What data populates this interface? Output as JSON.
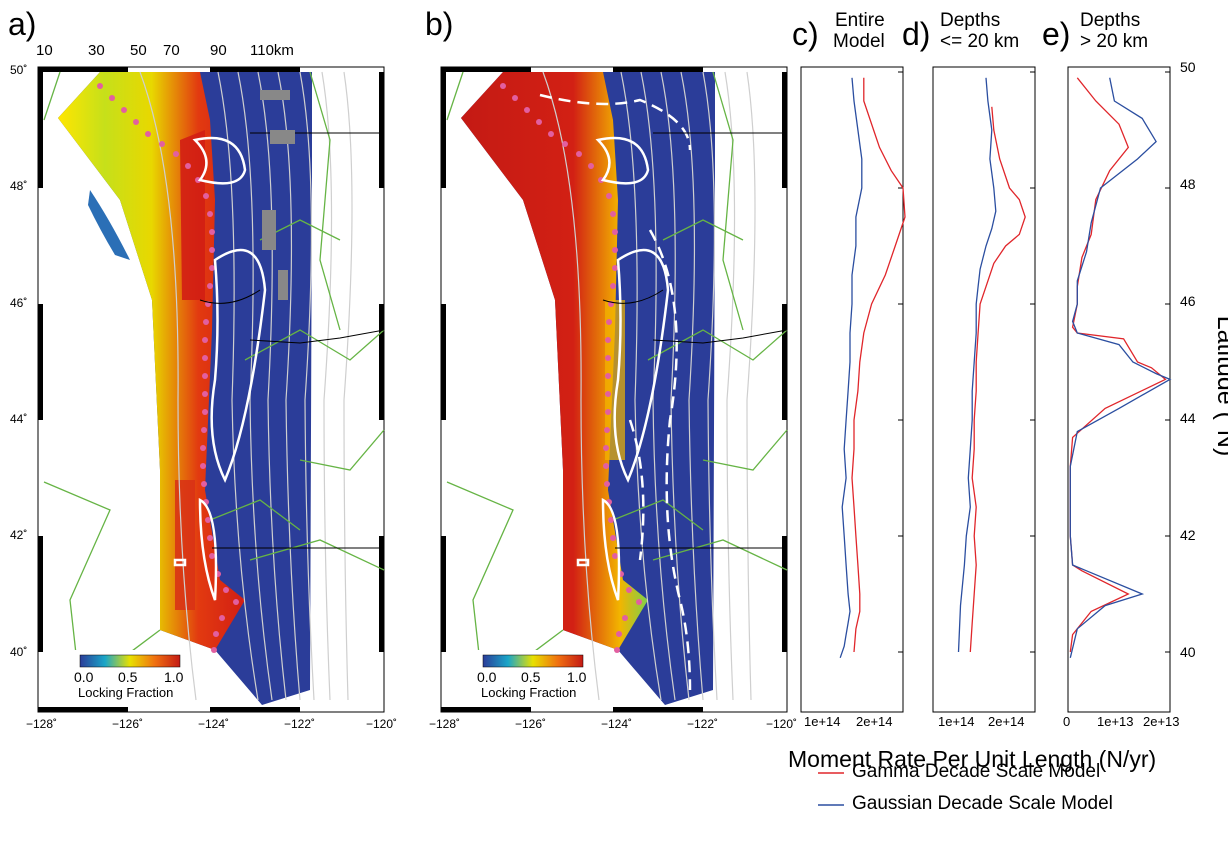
{
  "panels": {
    "a": "a)",
    "b": "b)",
    "c": {
      "letter": "c)",
      "title1": "Entire",
      "title2": "Model"
    },
    "d": {
      "letter": "d)",
      "title1": "Depths",
      "title2": "<= 20 km"
    },
    "e": {
      "letter": "e)",
      "title1": "Depths",
      "title2": "> 20 km"
    }
  },
  "maps": {
    "depth_labels": [
      "10",
      "30",
      "50",
      "70",
      "90",
      "110km"
    ],
    "lat_ticks": [
      "50˚",
      "48˚",
      "46˚",
      "44˚",
      "42˚",
      "40˚"
    ],
    "lon_ticks": [
      "−128˚",
      "−126˚",
      "−124˚",
      "−122˚",
      "−120˚"
    ],
    "colorbar": {
      "ticks": [
        "0.0",
        "0.5",
        "1.0"
      ],
      "label": "Locking Fraction"
    }
  },
  "colors": {
    "gamma": "#e0262b",
    "gaussian": "#2b4ea0",
    "plate_lines": "#66b445",
    "locked_low": "#2b3d99"
  },
  "chart_data": [
    {
      "type": "line",
      "title": "Entire Model",
      "xlabel": "Moment Rate Per Unit Length (N/yr)",
      "ylabel": "Latitude (°N)",
      "xticks": [
        "1e+14",
        "2e+14"
      ],
      "xlim": [
        0,
        260000000000000.0
      ],
      "ylim": [
        39,
        50
      ],
      "series": [
        {
          "name": "Gamma Decade Scale Model",
          "x": [
            160000000000000.0,
            160000000000000.0,
            185000000000000.0,
            200000000000000.0,
            230000000000000.0,
            260000000000000.0,
            265000000000000.0,
            240000000000000.0,
            215000000000000.0,
            180000000000000.0,
            160000000000000.0,
            150000000000000.0,
            145000000000000.0,
            135000000000000.0,
            135000000000000.0,
            130000000000000.0,
            135000000000000.0,
            140000000000000.0,
            145000000000000.0,
            150000000000000.0,
            150000000000000.0,
            140000000000000.0,
            135000000000000.0
          ],
          "y": [
            49.9,
            49.5,
            49.0,
            48.7,
            48.3,
            48.0,
            47.5,
            47.0,
            46.5,
            46.0,
            45.5,
            45.0,
            44.5,
            44.0,
            43.5,
            43.0,
            42.5,
            42.0,
            41.5,
            41.0,
            40.7,
            40.4,
            40.0
          ]
        },
        {
          "name": "Gaussian Decade Scale Model",
          "x": [
            130000000000000.0,
            135000000000000.0,
            145000000000000.0,
            155000000000000.0,
            155000000000000.0,
            140000000000000.0,
            140000000000000.0,
            130000000000000.0,
            130000000000000.0,
            125000000000000.0,
            125000000000000.0,
            120000000000000.0,
            115000000000000.0,
            110000000000000.0,
            115000000000000.0,
            105000000000000.0,
            110000000000000.0,
            115000000000000.0,
            120000000000000.0,
            125000000000000.0,
            120000000000000.0,
            115000000000000.0,
            110000000000000.0,
            100000000000000.0
          ],
          "y": [
            49.9,
            49.5,
            49.0,
            48.5,
            48.0,
            47.5,
            47.0,
            46.5,
            46.0,
            45.5,
            45.0,
            44.5,
            44.0,
            43.5,
            43.0,
            42.5,
            42.0,
            41.5,
            41.0,
            40.7,
            40.5,
            40.3,
            40.1,
            39.9
          ]
        }
      ]
    },
    {
      "type": "line",
      "title": "Depths <= 20 km",
      "xticks": [
        "1e+14",
        "2e+14"
      ],
      "xlim": [
        0,
        260000000000000.0
      ],
      "ylim": [
        39,
        50
      ],
      "series": [
        {
          "name": "Gamma Decade Scale Model",
          "x": [
            150000000000000.0,
            155000000000000.0,
            170000000000000.0,
            195000000000000.0,
            220000000000000.0,
            235000000000000.0,
            220000000000000.0,
            185000000000000.0,
            155000000000000.0,
            135000000000000.0,
            120000000000000.0,
            115000000000000.0,
            110000000000000.0,
            110000000000000.0,
            105000000000000.0,
            105000000000000.0,
            100000000000000.0,
            110000000000000.0,
            105000000000000.0,
            110000000000000.0,
            105000000000000.0,
            100000000000000.0,
            95000000000000.0
          ],
          "y": [
            49.4,
            49.0,
            48.5,
            48.0,
            47.8,
            47.5,
            47.2,
            47.0,
            46.7,
            46.3,
            46.0,
            45.5,
            45.0,
            44.5,
            44.0,
            43.5,
            43.0,
            42.5,
            42.0,
            41.5,
            41.0,
            40.5,
            40.0
          ]
        },
        {
          "name": "Gaussian Decade Scale Model",
          "x": [
            135000000000000.0,
            140000000000000.0,
            150000000000000.0,
            145000000000000.0,
            155000000000000.0,
            160000000000000.0,
            150000000000000.0,
            135000000000000.0,
            120000000000000.0,
            115000000000000.0,
            110000000000000.0,
            110000000000000.0,
            105000000000000.0,
            100000000000000.0,
            100000000000000.0,
            95000000000000.0,
            90000000000000.0,
            95000000000000.0,
            85000000000000.0,
            80000000000000.0,
            70000000000000.0,
            65000000000000.0
          ],
          "y": [
            49.9,
            49.5,
            49.0,
            48.5,
            48.0,
            47.6,
            47.3,
            47.0,
            46.6,
            46.3,
            46.0,
            45.5,
            45.0,
            44.5,
            44.0,
            43.5,
            43.0,
            42.5,
            42.0,
            41.5,
            40.8,
            40.0
          ]
        }
      ]
    },
    {
      "type": "line",
      "title": "Depths > 20 km",
      "xticks": [
        "0",
        "1e+13",
        "2e+13"
      ],
      "xlim": [
        0,
        22000000000000.0
      ],
      "ylim": [
        39,
        50
      ],
      "series": [
        {
          "name": "Gamma Decade Scale Model",
          "x": [
            2000000000000.0,
            6000000000000.0,
            11000000000000.0,
            13000000000000.0,
            9000000000000.0,
            6000000000000.0,
            5000000000000.0,
            3000000000000.0,
            2000000000000.0,
            2000000000000.0,
            1000000000000.0,
            2000000000000.0,
            12000000000000.0,
            15000000000000.0,
            18000000000000.0,
            21000000000000.0,
            8000000000000.0,
            1000000000000.0,
            500000000000.0,
            500000000000.0,
            1000000000000.0,
            3000000000000.0,
            13000000000000.0,
            5000000000000.0,
            1000000000000.0,
            500000000000.0
          ],
          "y": [
            49.9,
            49.5,
            49.1,
            48.7,
            48.3,
            47.8,
            47.2,
            46.8,
            46.3,
            46.0,
            45.6,
            45.5,
            45.4,
            45.0,
            44.9,
            44.7,
            44.2,
            43.7,
            43.2,
            42.0,
            41.5,
            41.4,
            41.0,
            40.7,
            40.3,
            40.0
          ]
        },
        {
          "name": "Gaussian Decade Scale Model",
          "x": [
            9000000000000.0,
            10000000000000.0,
            16000000000000.0,
            19000000000000.0,
            15000000000000.0,
            7000000000000.0,
            5000000000000.0,
            4000000000000.0,
            2000000000000.0,
            2000000000000.0,
            1000000000000.0,
            2000000000000.0,
            11000000000000.0,
            14000000000000.0,
            19000000000000.0,
            22000000000000.0,
            11000000000000.0,
            2000000000000.0,
            500000000000.0,
            500000000000.0,
            1000000000000.0,
            4000000000000.0,
            16000000000000.0,
            8000000000000.0,
            2000000000000.0,
            500000000000.0
          ],
          "y": [
            49.9,
            49.5,
            49.2,
            48.8,
            48.5,
            48.0,
            47.4,
            46.9,
            46.4,
            46.0,
            45.7,
            45.5,
            45.3,
            45.0,
            44.8,
            44.7,
            44.2,
            43.8,
            43.2,
            42.0,
            41.5,
            41.4,
            41.0,
            40.8,
            40.4,
            39.9
          ]
        }
      ]
    }
  ],
  "y_axis": {
    "ticks": [
      "50",
      "48",
      "46",
      "44",
      "42",
      "40"
    ],
    "label": "Latitude (°N)"
  },
  "x_axis_label": "Moment Rate Per Unit Length (N/yr)",
  "legend": [
    "Gamma Decade Scale Model",
    "Gaussian Decade Scale Model"
  ]
}
